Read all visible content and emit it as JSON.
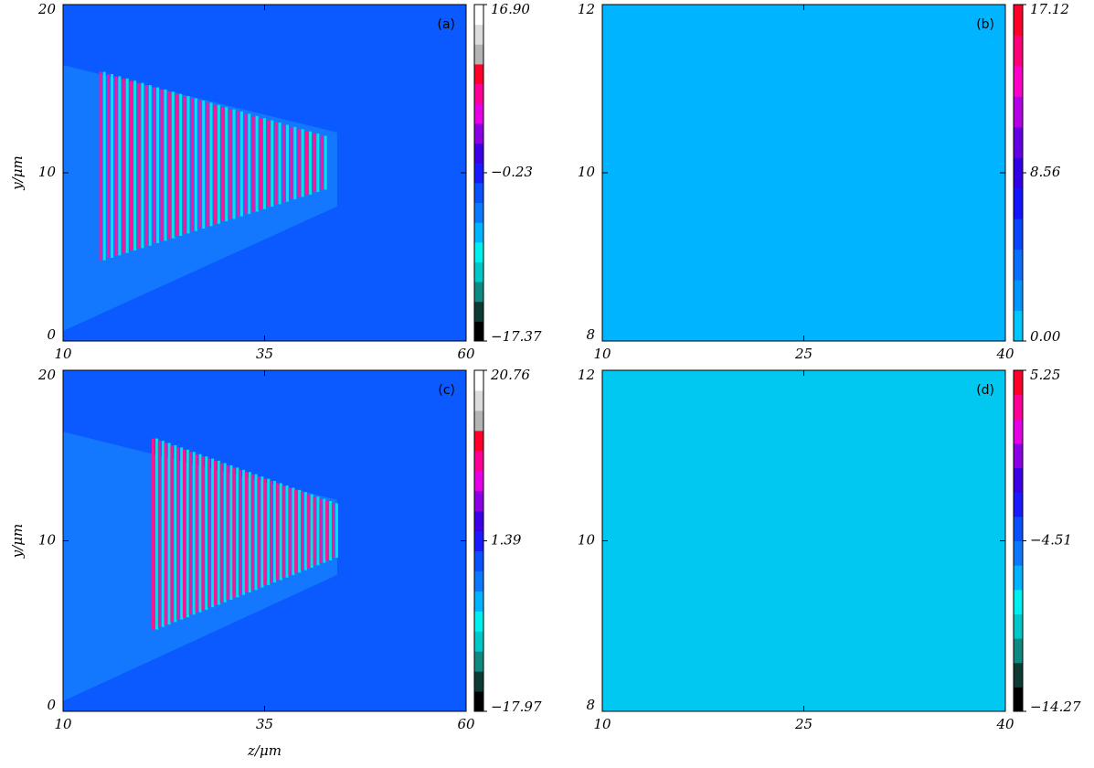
{
  "chart_data": [
    {
      "type": "heatmap",
      "panel_label": "(a)",
      "ylabel": "y/μm",
      "xlim": [
        10,
        60
      ],
      "xticks": [
        10,
        35,
        60
      ],
      "ylim": [
        0,
        20
      ],
      "yticks": [
        0,
        10,
        20
      ],
      "background": "#0a5aff",
      "clim": [
        -17.37,
        16.9
      ],
      "colorbar_colors": [
        "#000000",
        "#0d3b33",
        "#0f8a80",
        "#00c8c8",
        "#00f0f0",
        "#00b4ff",
        "#0a78ff",
        "#0a50ff",
        "#1a1aff",
        "#3c00e6",
        "#8c00e6",
        "#e600e6",
        "#ff0096",
        "#ff0028",
        "#b4b4b4",
        "#dcdcdc",
        "#ffffff"
      ],
      "colorbar_ticks": [
        {
          "value": -17.37,
          "label": "−17.37"
        },
        {
          "value": -0.23,
          "label": "−0.23"
        },
        {
          "value": 16.9,
          "label": "16.90"
        }
      ]
    },
    {
      "type": "heatmap",
      "panel_label": "(b)",
      "xlim": [
        10,
        40
      ],
      "xticks": [
        10,
        25,
        40
      ],
      "ylim": [
        8,
        12
      ],
      "yticks": [
        8,
        10,
        12
      ],
      "background": "#00b4ff",
      "clim": [
        0,
        17.12
      ],
      "colorbar_colors": [
        "#00c8ff",
        "#0096ff",
        "#0a6eff",
        "#0a46ff",
        "#1414ff",
        "#3200e6",
        "#6400e6",
        "#b400e6",
        "#ff00c8",
        "#ff0078",
        "#ff0028"
      ],
      "colorbar_ticks": [
        {
          "value": 0,
          "label": "0.00"
        },
        8.56,
        17.12
      ]
    },
    {
      "type": "heatmap",
      "panel_label": "(c)",
      "ylabel": "y/μm",
      "xlabel": "z/μm",
      "xlim": [
        10,
        60
      ],
      "xticks": [
        10,
        35,
        60
      ],
      "ylim": [
        0,
        20
      ],
      "yticks": [
        0,
        10,
        20
      ],
      "background": "#0a5aff",
      "clim": [
        -17.97,
        20.76
      ],
      "colorbar_colors": [
        "#000000",
        "#0d3b33",
        "#0f8a80",
        "#00c8c8",
        "#00f0f0",
        "#00b4ff",
        "#0a78ff",
        "#0a50ff",
        "#1a1aff",
        "#3c00e6",
        "#8c00e6",
        "#e600e6",
        "#ff0096",
        "#ff0028",
        "#b4b4b4",
        "#dcdcdc",
        "#ffffff"
      ],
      "colorbar_ticks": [
        {
          "value": -17.97,
          "label": "−17.97"
        },
        1.39,
        20.76
      ]
    },
    {
      "type": "heatmap",
      "panel_label": "(d)",
      "xlim": [
        10,
        40
      ],
      "xticks": [
        10,
        25,
        40
      ],
      "ylim": [
        8,
        12
      ],
      "yticks": [
        8,
        10,
        12
      ],
      "background": "#00c8f0",
      "clim": [
        -14.27,
        5.25
      ],
      "colorbar_colors": [
        "#000000",
        "#0d3b33",
        "#0f8a80",
        "#00c8c8",
        "#00f0f0",
        "#00b4ff",
        "#0a78ff",
        "#0a50ff",
        "#1a1aff",
        "#3c00e6",
        "#8c00e6",
        "#e600e6",
        "#ff0096",
        "#ff0028"
      ],
      "colorbar_ticks": [
        {
          "value": -14.27,
          "label": "−14.27"
        },
        {
          "value": -4.51,
          "label": "−4.51"
        },
        5.25
      ]
    }
  ]
}
